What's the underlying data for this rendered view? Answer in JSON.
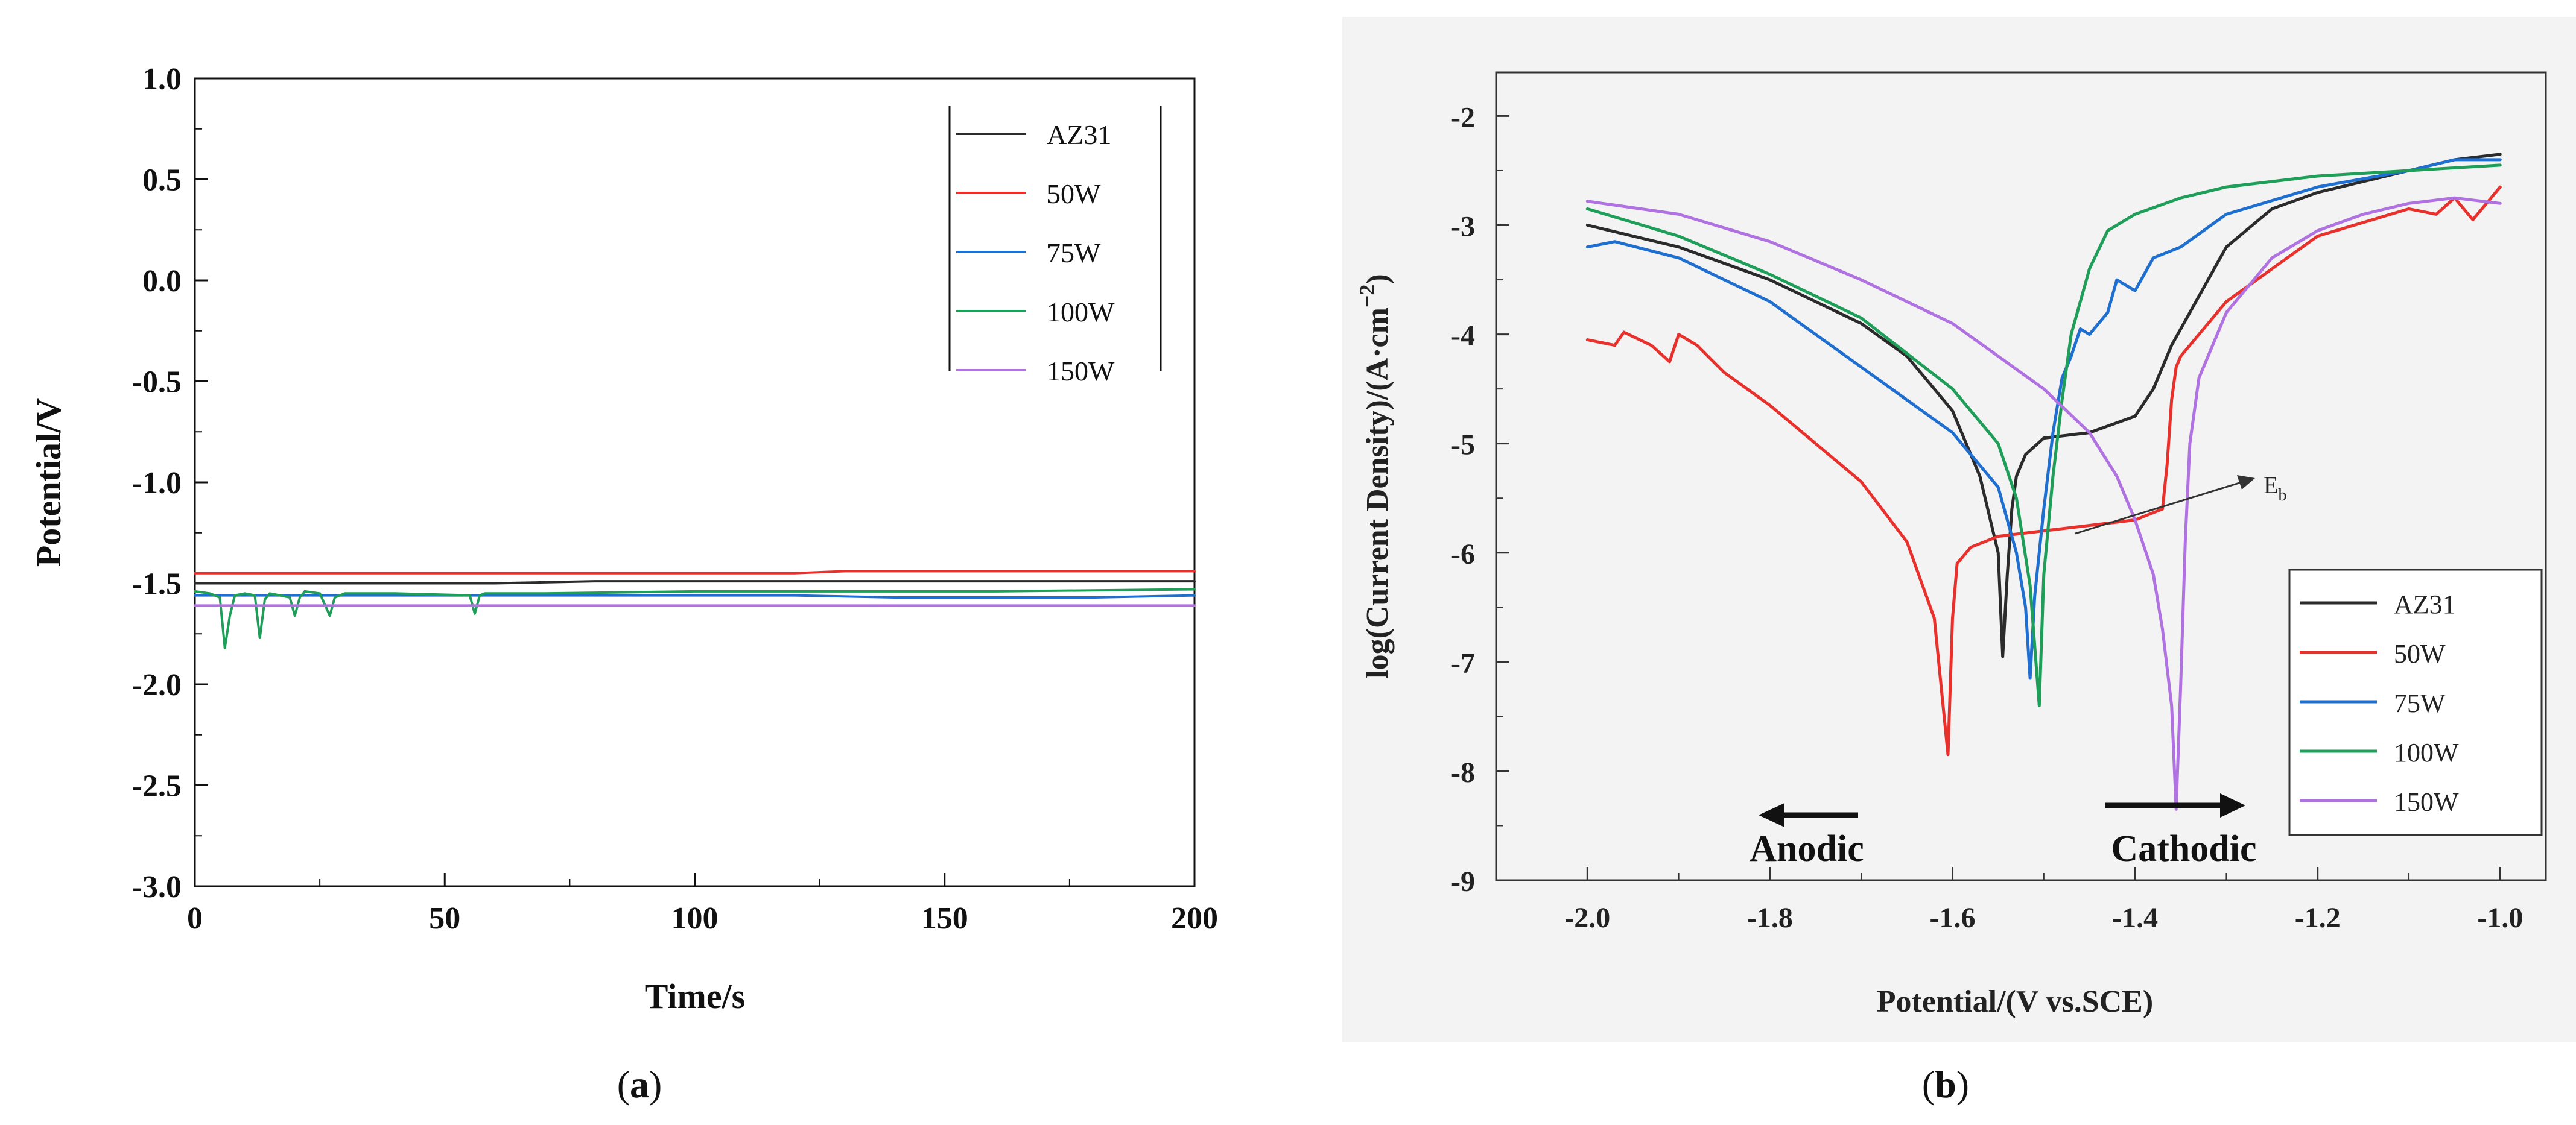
{
  "colors": {
    "AZ31": "#2b2b2b",
    "50W": "#e8312c",
    "75W": "#1f6fd0",
    "100W": "#1e9e58",
    "150W": "#b072e0",
    "panel_b_bg": "#f3f3f3"
  },
  "chart_data": [
    {
      "panel": "a",
      "type": "line",
      "caption_letter": "a",
      "xlabel": "Time/s",
      "ylabel": "Potential/V",
      "xlim": [
        0,
        200
      ],
      "ylim": [
        -3.0,
        1.0
      ],
      "xticks": [
        "0",
        "50",
        "100",
        "150",
        "200"
      ],
      "yticks": [
        "1.0",
        "0.5",
        "0.0",
        "-0.5",
        "-1.0",
        "-1.5",
        "-2.0",
        "-2.5",
        "-3.0"
      ],
      "grid": false,
      "legend_position": "top-right",
      "series": [
        {
          "name": "AZ31",
          "x": [
            0,
            10,
            20,
            40,
            60,
            80,
            100,
            120,
            140,
            160,
            180,
            200
          ],
          "y": [
            -1.5,
            -1.5,
            -1.5,
            -1.5,
            -1.5,
            -1.49,
            -1.49,
            -1.49,
            -1.49,
            -1.49,
            -1.49,
            -1.49
          ]
        },
        {
          "name": "50W",
          "x": [
            0,
            40,
            80,
            120,
            130,
            140,
            160,
            180,
            200
          ],
          "y": [
            -1.45,
            -1.45,
            -1.45,
            -1.45,
            -1.44,
            -1.44,
            -1.44,
            -1.44,
            -1.44
          ]
        },
        {
          "name": "75W",
          "x": [
            0,
            20,
            40,
            60,
            80,
            100,
            120,
            140,
            160,
            180,
            200
          ],
          "y": [
            -1.56,
            -1.56,
            -1.56,
            -1.56,
            -1.56,
            -1.56,
            -1.56,
            -1.57,
            -1.57,
            -1.57,
            -1.56
          ]
        },
        {
          "name": "100W",
          "x": [
            0,
            3,
            5,
            6,
            7,
            8,
            10,
            12,
            13,
            14,
            15,
            17,
            19,
            20,
            21,
            22,
            25,
            27,
            28,
            30,
            40,
            55,
            56,
            57,
            58,
            70,
            100,
            130,
            160,
            200
          ],
          "y": [
            -1.54,
            -1.55,
            -1.57,
            -1.82,
            -1.66,
            -1.56,
            -1.55,
            -1.56,
            -1.77,
            -1.58,
            -1.55,
            -1.56,
            -1.57,
            -1.66,
            -1.57,
            -1.54,
            -1.55,
            -1.66,
            -1.57,
            -1.55,
            -1.55,
            -1.56,
            -1.65,
            -1.56,
            -1.55,
            -1.55,
            -1.54,
            -1.54,
            -1.54,
            -1.53
          ]
        },
        {
          "name": "150W",
          "x": [
            0,
            50,
            100,
            150,
            200
          ],
          "y": [
            -1.61,
            -1.61,
            -1.61,
            -1.61,
            -1.61
          ]
        }
      ]
    },
    {
      "panel": "b",
      "type": "line",
      "caption_letter": "b",
      "xlabel": "Potential/(V vs.SCE)",
      "ylabel_main": "log(Current Density)/(A·cm",
      "ylabel_sup": "−2",
      "ylabel_close": ")",
      "xlim": [
        -2.1,
        -0.95
      ],
      "ylim": [
        -9,
        -1.6
      ],
      "xticks": [
        "-2.0",
        "-1.8",
        "-1.6",
        "-1.4",
        "-1.2",
        "-1.0"
      ],
      "yticks": [
        "-2",
        "-3",
        "-4",
        "-5",
        "-6",
        "-7",
        "-8",
        "-9"
      ],
      "grid": false,
      "legend_position": "bottom-right",
      "annotations": {
        "eb_main": "E",
        "eb_sub": "b",
        "anodic": "Anodic",
        "cathodic": "Cathodic"
      },
      "series": [
        {
          "name": "AZ31",
          "x": [
            -2.0,
            -1.9,
            -1.8,
            -1.7,
            -1.65,
            -1.6,
            -1.57,
            -1.55,
            -1.545,
            -1.54,
            -1.535,
            -1.53,
            -1.52,
            -1.5,
            -1.45,
            -1.4,
            -1.38,
            -1.36,
            -1.34,
            -1.3,
            -1.25,
            -1.2,
            -1.1,
            -1.05,
            -1.0
          ],
          "y": [
            -3.0,
            -3.2,
            -3.5,
            -3.9,
            -4.2,
            -4.7,
            -5.3,
            -6.0,
            -6.95,
            -6.2,
            -5.6,
            -5.3,
            -5.1,
            -4.95,
            -4.9,
            -4.75,
            -4.5,
            -4.1,
            -3.8,
            -3.2,
            -2.85,
            -2.7,
            -2.5,
            -2.4,
            -2.35
          ]
        },
        {
          "name": "50W",
          "x": [
            -2.0,
            -1.97,
            -1.96,
            -1.93,
            -1.91,
            -1.9,
            -1.88,
            -1.85,
            -1.8,
            -1.75,
            -1.7,
            -1.65,
            -1.62,
            -1.605,
            -1.6,
            -1.595,
            -1.58,
            -1.55,
            -1.5,
            -1.45,
            -1.4,
            -1.37,
            -1.365,
            -1.36,
            -1.355,
            -1.35,
            -1.3,
            -1.25,
            -1.2,
            -1.1,
            -1.07,
            -1.05,
            -1.03,
            -1.0
          ],
          "y": [
            -4.05,
            -4.1,
            -3.98,
            -4.1,
            -4.25,
            -4.0,
            -4.1,
            -4.35,
            -4.65,
            -5.0,
            -5.35,
            -5.9,
            -6.6,
            -7.85,
            -6.6,
            -6.1,
            -5.95,
            -5.85,
            -5.8,
            -5.75,
            -5.7,
            -5.6,
            -5.2,
            -4.6,
            -4.3,
            -4.2,
            -3.7,
            -3.4,
            -3.1,
            -2.85,
            -2.9,
            -2.75,
            -2.95,
            -2.65
          ]
        },
        {
          "name": "75W",
          "x": [
            -2.0,
            -1.97,
            -1.9,
            -1.8,
            -1.7,
            -1.6,
            -1.55,
            -1.53,
            -1.52,
            -1.515,
            -1.51,
            -1.5,
            -1.49,
            -1.48,
            -1.47,
            -1.46,
            -1.45,
            -1.43,
            -1.42,
            -1.4,
            -1.38,
            -1.35,
            -1.3,
            -1.2,
            -1.1,
            -1.05,
            -1.0
          ],
          "y": [
            -3.2,
            -3.15,
            -3.3,
            -3.7,
            -4.3,
            -4.9,
            -5.4,
            -6.0,
            -6.5,
            -7.15,
            -6.4,
            -5.6,
            -4.9,
            -4.4,
            -4.2,
            -3.95,
            -4.0,
            -3.8,
            -3.5,
            -3.6,
            -3.3,
            -3.2,
            -2.9,
            -2.65,
            -2.5,
            -2.4,
            -2.4
          ]
        },
        {
          "name": "100W",
          "x": [
            -2.0,
            -1.9,
            -1.8,
            -1.7,
            -1.6,
            -1.55,
            -1.53,
            -1.515,
            -1.505,
            -1.5,
            -1.49,
            -1.48,
            -1.47,
            -1.45,
            -1.43,
            -1.4,
            -1.35,
            -1.3,
            -1.2,
            -1.1,
            -1.0
          ],
          "y": [
            -2.85,
            -3.1,
            -3.45,
            -3.85,
            -4.5,
            -5.0,
            -5.5,
            -6.3,
            -7.4,
            -6.2,
            -5.3,
            -4.6,
            -4.0,
            -3.4,
            -3.05,
            -2.9,
            -2.75,
            -2.65,
            -2.55,
            -2.5,
            -2.45
          ]
        },
        {
          "name": "150W",
          "x": [
            -2.0,
            -1.9,
            -1.8,
            -1.7,
            -1.6,
            -1.5,
            -1.45,
            -1.42,
            -1.4,
            -1.38,
            -1.37,
            -1.36,
            -1.355,
            -1.35,
            -1.345,
            -1.34,
            -1.33,
            -1.3,
            -1.25,
            -1.2,
            -1.15,
            -1.1,
            -1.05,
            -1.0
          ],
          "y": [
            -2.78,
            -2.9,
            -3.15,
            -3.5,
            -3.9,
            -4.5,
            -4.9,
            -5.3,
            -5.7,
            -6.2,
            -6.7,
            -7.4,
            -8.35,
            -7.2,
            -5.9,
            -5.0,
            -4.4,
            -3.8,
            -3.3,
            -3.05,
            -2.9,
            -2.8,
            -2.75,
            -2.8
          ]
        }
      ]
    }
  ]
}
